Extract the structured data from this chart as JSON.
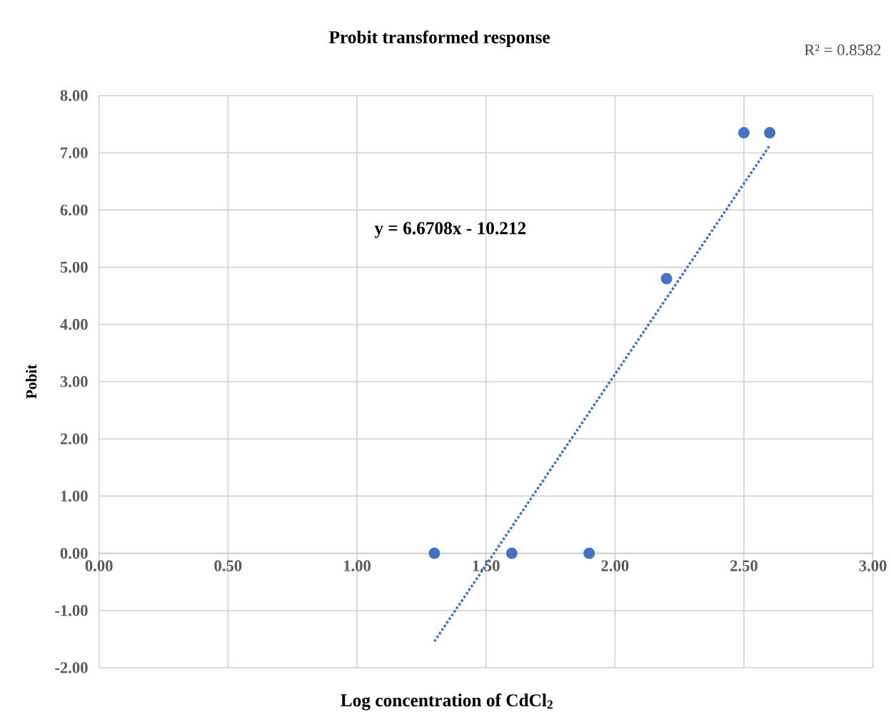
{
  "chart_data": {
    "type": "scatter",
    "title": "Probit transformed response",
    "xlabel": "Log concentration of CdCl$_{2}$",
    "ylabel": "Pobit",
    "annotations": [
      "y = 6.6708x - 10.212",
      "R² = 0.8582"
    ],
    "series": [
      {
        "color": "#4472c4",
        "x": [
          1.3,
          1.6,
          1.9,
          2.2,
          2.5,
          2.6
        ],
        "values": [
          0,
          0,
          0,
          4.8,
          7.35,
          7.35
        ],
        "marker": "circle"
      },
      {
        "type": "line",
        "color": "#4472c4",
        "x": [
          1.3,
          2.6
        ],
        "values": [
          -1.54,
          7.13
        ],
        "line_style": "dotted",
        "marker": "none"
      }
    ],
    "xlim": [
      0,
      3
    ],
    "ylim": [
      -2,
      8
    ],
    "xticks": [
      {
        "value": 0,
        "label": "0.00"
      },
      {
        "value": 0.5,
        "label": "0.50"
      },
      {
        "value": 1,
        "label": "1.00"
      },
      {
        "value": 1.5,
        "label": "1.50"
      },
      {
        "value": 2,
        "label": "2.00"
      },
      {
        "value": 2.5,
        "label": "2.50"
      },
      {
        "value": 3,
        "label": "3.00"
      }
    ],
    "yticks": [
      {
        "value": -2,
        "label": "-2.00"
      },
      {
        "value": -1,
        "label": "-1.00"
      },
      {
        "value": 0,
        "label": "0.00"
      },
      {
        "value": 1,
        "label": "1.00"
      },
      {
        "value": 2,
        "label": "2.00"
      },
      {
        "value": 3,
        "label": "3.00"
      },
      {
        "value": 4,
        "label": "4.00"
      },
      {
        "value": 5,
        "label": "5.00"
      },
      {
        "value": 6,
        "label": "6.00"
      },
      {
        "value": 7,
        "label": "7.00"
      },
      {
        "value": 8,
        "label": "8.00"
      }
    ],
    "grid": true
  }
}
